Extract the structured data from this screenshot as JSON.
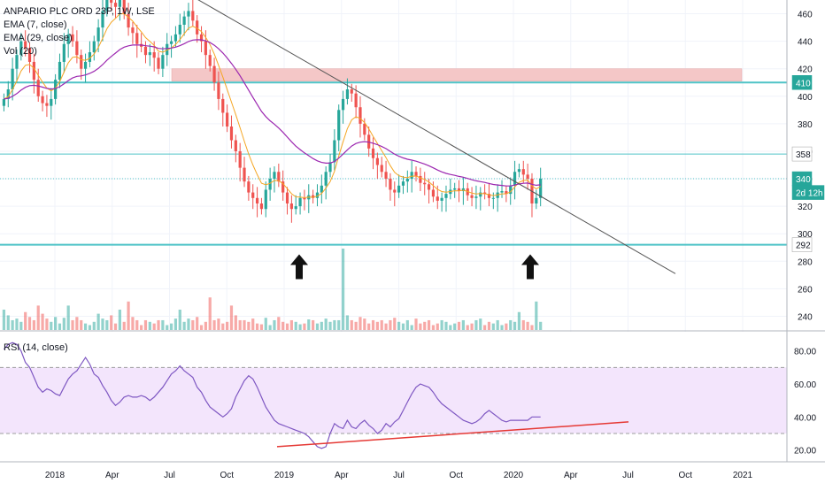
{
  "header": {
    "symbol_line": "ANPARIO PLC ORD 23P, 1W, LSE",
    "ema_fast": "EMA (7, close)",
    "ema_slow": "EMA (29, close)",
    "volume": "Vol (20)",
    "rsi": "RSI (14, close)"
  },
  "price_axis": {
    "ticks": [
      "460",
      "440",
      "420",
      "400",
      "380",
      "360",
      "340",
      "320",
      "300",
      "280",
      "260",
      "240"
    ],
    "tick_values": [
      460,
      440,
      420,
      400,
      380,
      360,
      340,
      320,
      300,
      280,
      260,
      240
    ],
    "badges": [
      {
        "label": "410",
        "value": 410,
        "color": "#26a69a",
        "text_color": "#ffffff"
      },
      {
        "label": "358",
        "value": 358,
        "color": "#ffffff",
        "text_color": "#131722"
      },
      {
        "label": "340",
        "value": 340,
        "color": "#26a69a",
        "text_color": "#ffffff"
      },
      {
        "label": "2d 12h",
        "value": 330,
        "color": "#26a69a",
        "text_color": "#ffffff"
      },
      {
        "label": "292",
        "value": 292,
        "color": "#ffffff",
        "text_color": "#131722"
      }
    ]
  },
  "rsi_axis": {
    "ticks": [
      "80.00",
      "60.00",
      "40.00",
      "20.00"
    ],
    "tick_values": [
      80,
      60,
      40,
      20
    ]
  },
  "time_axis": {
    "labels": [
      "2018",
      "Apr",
      "Jul",
      "Oct",
      "2019",
      "Apr",
      "Jul",
      "Oct",
      "2020",
      "Apr",
      "Jul",
      "Oct",
      "2021"
    ]
  },
  "colors": {
    "up": "#26a69a",
    "down": "#ef5350",
    "ema_fast": "#f5a623",
    "ema_slow": "#9c27b0",
    "rsi_line": "#7e57c2",
    "rsi_band": "#f3e5fc",
    "resistance_zone": "#f4c7c7",
    "support_line": "#4fc3c7",
    "trendline": "#555555",
    "rsi_trendline": "#e53935"
  },
  "chart_data": {
    "type": "candlestick",
    "interval": "1W",
    "price_range": [
      230,
      470
    ],
    "rsi_range": [
      15,
      90
    ],
    "rsi_bands": [
      70,
      30
    ],
    "horizontal_levels": [
      410,
      358,
      340,
      292
    ],
    "resistance_zone": [
      411,
      420
    ],
    "price_trendline": [
      {
        "t": 1.5,
        "price": 518
      },
      {
        "t": 25.5,
        "price": 271
      }
    ],
    "rsi_trendline": [
      {
        "t": 12.3,
        "rsi": 22
      },
      {
        "t": 27.6,
        "rsi": 37
      }
    ],
    "arrows": [
      {
        "t": 13.0,
        "price": 285
      },
      {
        "t": 22.9,
        "price": 285
      }
    ],
    "closes": [
      398,
      405,
      420,
      430,
      440,
      435,
      425,
      412,
      400,
      395,
      393,
      398,
      412,
      425,
      438,
      445,
      440,
      430,
      420,
      425,
      432,
      440,
      450,
      462,
      470,
      468,
      465,
      470,
      460,
      450,
      446,
      438,
      436,
      430,
      432,
      428,
      420,
      430,
      438,
      440,
      445,
      452,
      458,
      462,
      455,
      445,
      440,
      430,
      422,
      410,
      398,
      388,
      378,
      368,
      360,
      348,
      338,
      330,
      326,
      322,
      318,
      332,
      340,
      345,
      338,
      330,
      322,
      318,
      320,
      326,
      325,
      328,
      326,
      330,
      335,
      345,
      352,
      368,
      390,
      398,
      405,
      402,
      392,
      380,
      372,
      362,
      355,
      350,
      345,
      340,
      332,
      330,
      335,
      338,
      340,
      345,
      342,
      337,
      336,
      332,
      327,
      324,
      326,
      329,
      332,
      333,
      331,
      333,
      328,
      326,
      327,
      330,
      329,
      326,
      326,
      330,
      331,
      329,
      335,
      345,
      347,
      343,
      340,
      322,
      326,
      340
    ],
    "volumes": [
      0.25,
      0.18,
      0.12,
      0.14,
      0.1,
      0.22,
      0.16,
      0.12,
      0.3,
      0.2,
      0.14,
      0.1,
      0.16,
      0.08,
      0.15,
      0.3,
      0.12,
      0.16,
      0.12,
      0.08,
      0.06,
      0.1,
      0.2,
      0.14,
      0.12,
      0.18,
      0.08,
      0.25,
      0.1,
      0.35,
      0.16,
      0.12,
      0.06,
      0.12,
      0.1,
      0.08,
      0.12,
      0.12,
      0.06,
      0.08,
      0.14,
      0.25,
      0.1,
      0.14,
      0.12,
      0.16,
      0.06,
      0.1,
      0.4,
      0.12,
      0.14,
      0.08,
      0.1,
      0.3,
      0.18,
      0.12,
      0.12,
      0.1,
      0.14,
      0.08,
      0.07,
      0.15,
      0.06,
      0.12,
      0.16,
      0.1,
      0.08,
      0.12,
      0.1,
      0.07,
      0.08,
      0.13,
      0.12,
      0.08,
      0.1,
      0.14,
      0.1,
      0.12,
      0.12,
      1.0,
      0.18,
      0.12,
      0.1,
      0.16,
      0.14,
      0.08,
      0.12,
      0.1,
      0.12,
      0.08,
      0.12,
      0.15,
      0.1,
      0.08,
      0.12,
      0.06,
      0.14,
      0.08,
      0.1,
      0.12,
      0.06,
      0.08,
      0.12,
      0.1,
      0.06,
      0.08,
      0.1,
      0.12,
      0.06,
      0.08,
      0.12,
      0.14,
      0.06,
      0.1,
      0.08,
      0.12,
      0.06,
      0.08,
      0.12,
      0.1,
      0.22,
      0.12,
      0.1,
      0.06,
      0.35,
      0.1
    ],
    "rsi": [
      81,
      84,
      85,
      84,
      80,
      73,
      70,
      64,
      58,
      55,
      57,
      56,
      54,
      53,
      58,
      63,
      66,
      68,
      72,
      76,
      72,
      66,
      64,
      59,
      55,
      50,
      47,
      49,
      52,
      53,
      52,
      52,
      53,
      52,
      50,
      52,
      55,
      58,
      62,
      66,
      68,
      71,
      68,
      66,
      64,
      58,
      55,
      50,
      46,
      44,
      42,
      40,
      42,
      45,
      52,
      57,
      62,
      65,
      63,
      58,
      52,
      46,
      42,
      38,
      36,
      35,
      34,
      33,
      32,
      31,
      30,
      28,
      25,
      22,
      21,
      22,
      30,
      36,
      34,
      33,
      38,
      34,
      33,
      36,
      38,
      35,
      33,
      30,
      32,
      36,
      34,
      37,
      39,
      44,
      49,
      54,
      58,
      60,
      59,
      58,
      55,
      51,
      48,
      46,
      44,
      42,
      40,
      38,
      37,
      36,
      37,
      39,
      42,
      44,
      42,
      40,
      38,
      37,
      38,
      38,
      38,
      38,
      38,
      40,
      40,
      40
    ]
  }
}
